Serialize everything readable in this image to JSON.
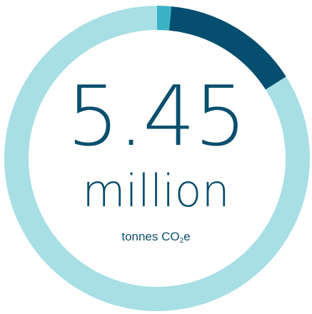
{
  "chart_data": {
    "type": "pie",
    "style": "donut",
    "center_value": "5.45",
    "center_unit": "million",
    "caption": {
      "prefix": "tonnes CO",
      "subscript": "2",
      "suffix": "e"
    },
    "segments": [
      {
        "value": 0.015,
        "color": "#3ab3c5"
      },
      {
        "value": 0.145,
        "color": "#064e70"
      },
      {
        "value": 0.84,
        "color": "#a7dfe5"
      }
    ]
  }
}
